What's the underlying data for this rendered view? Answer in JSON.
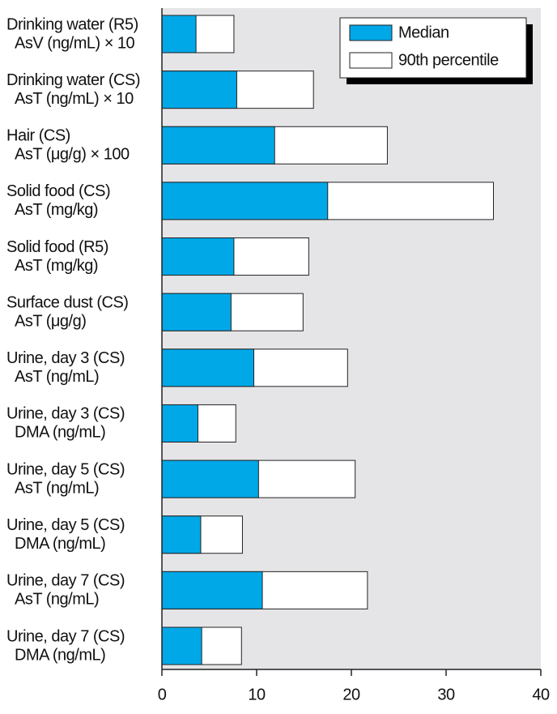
{
  "chart_data": {
    "type": "bar",
    "orientation": "horizontal",
    "categories": [
      [
        "Drinking water (R5)",
        "AsV (ng/mL) × 10"
      ],
      [
        "Drinking water (CS)",
        "AsT (ng/mL) × 10"
      ],
      [
        "Hair (CS)",
        "AsT (μg/g) × 100"
      ],
      [
        "Solid food (CS)",
        "AsT (mg/kg)"
      ],
      [
        "Solid food (R5)",
        "AsT (mg/kg)"
      ],
      [
        "Surface dust (CS)",
        "AsT (μg/g)"
      ],
      [
        "Urine, day 3 (CS)",
        "AsT (ng/mL)"
      ],
      [
        "Urine, day 3 (CS)",
        "DMA (ng/mL)"
      ],
      [
        "Urine, day 5 (CS)",
        "AsT (ng/mL)"
      ],
      [
        "Urine, day 5 (CS)",
        "DMA (ng/mL)"
      ],
      [
        "Urine, day 7 (CS)",
        "AsT (ng/mL)"
      ],
      [
        "Urine, day 7 (CS)",
        "DMA (ng/mL)"
      ]
    ],
    "series": [
      {
        "name": "Median",
        "color": "#00a8e8",
        "values": [
          3.6,
          7.9,
          11.9,
          17.5,
          7.6,
          7.3,
          9.7,
          3.8,
          10.2,
          4.1,
          10.6,
          4.2
        ]
      },
      {
        "name": "90th percentile",
        "color": "#ffffff",
        "values": [
          7.6,
          16.0,
          23.8,
          35.0,
          15.5,
          14.9,
          19.6,
          7.8,
          20.4,
          8.5,
          21.7,
          8.4
        ]
      }
    ],
    "xlim": [
      0,
      40
    ],
    "xticks": [
      0,
      10,
      20,
      30,
      40
    ],
    "legend": "top-right"
  }
}
